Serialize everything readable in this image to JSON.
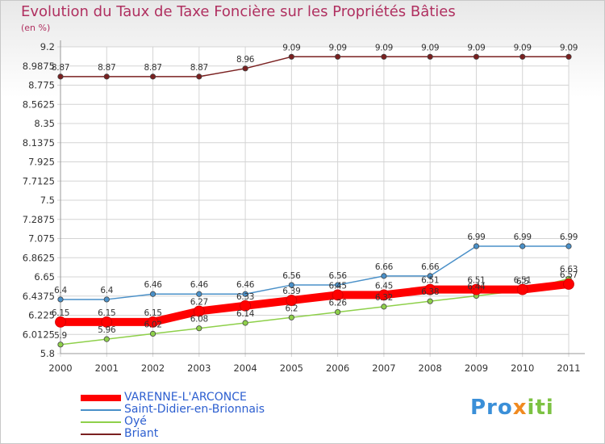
{
  "chart_data": {
    "type": "line",
    "title": "Evolution du Taux de Taxe Foncière sur les Propriétés Bâties",
    "ylabel": "(en %)",
    "xlabel": "",
    "categories": [
      "2000",
      "2001",
      "2002",
      "2003",
      "2004",
      "2005",
      "2006",
      "2007",
      "2008",
      "2009",
      "2010",
      "2011"
    ],
    "ylim": [
      5.8,
      9.2
    ],
    "y_ticks": [
      "9.2",
      "8.9875",
      "8.775",
      "8.5625",
      "8.35",
      "8.1375",
      "7.925",
      "7.7125",
      "7.5",
      "7.2875",
      "7.075",
      "6.8625",
      "6.65",
      "6.4375",
      "6.225",
      "6.0125",
      "5.8"
    ],
    "grid": true,
    "series": [
      {
        "name": "VARENNE-L'ARCONCE",
        "color": "#ff0000",
        "values": [
          6.15,
          6.15,
          6.15,
          6.27,
          6.33,
          6.39,
          6.45,
          6.45,
          6.51,
          6.51,
          6.51,
          6.57
        ],
        "labels": [
          "6.15",
          "6.15",
          "6.15",
          "6.27",
          "6.33",
          "6.39",
          "6.45",
          "6.45",
          "6.51",
          "6.51",
          "6.51",
          "6.57"
        ]
      },
      {
        "name": "Saint-Didier-en-Brionnais",
        "color": "#4a90c8",
        "values": [
          6.4,
          6.4,
          6.46,
          6.46,
          6.46,
          6.56,
          6.56,
          6.66,
          6.66,
          6.99,
          6.99,
          6.99
        ],
        "labels": [
          "6.4",
          "6.4",
          "6.46",
          "6.46",
          "6.46",
          "6.56",
          "6.56",
          "6.66",
          "6.66",
          "6.99",
          "6.99",
          "6.99"
        ]
      },
      {
        "name": "Oyé",
        "color": "#8ed04a",
        "values": [
          5.9,
          5.96,
          6.02,
          6.08,
          6.14,
          6.2,
          6.26,
          6.32,
          6.38,
          6.44,
          6.5,
          6.63
        ],
        "labels": [
          "5.9",
          "5.96",
          "6.02",
          "6.08",
          "6.14",
          "6.2",
          "6.26",
          "6.32",
          "6.38",
          "6.44",
          "6.5",
          "6.63"
        ]
      },
      {
        "name": "Briant",
        "color": "#7a2020",
        "values": [
          8.87,
          8.87,
          8.87,
          8.87,
          8.96,
          9.09,
          9.09,
          9.09,
          9.09,
          9.09,
          9.09,
          9.09
        ],
        "labels": [
          "8.87",
          "8.87",
          "8.87",
          "8.87",
          "8.96",
          "9.09",
          "9.09",
          "9.09",
          "9.09",
          "9.09",
          "9.09",
          "9.09"
        ]
      }
    ],
    "legend_position": "bottom-left"
  },
  "logo": {
    "text_pro": "Pro",
    "text_x": "x",
    "text_iti": "iti"
  }
}
